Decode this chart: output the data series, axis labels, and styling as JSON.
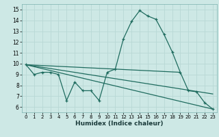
{
  "title": "",
  "xlabel": "Humidex (Indice chaleur)",
  "xlim": [
    -0.5,
    23.5
  ],
  "ylim": [
    5.5,
    15.5
  ],
  "xticks": [
    0,
    1,
    2,
    3,
    4,
    5,
    6,
    7,
    8,
    9,
    10,
    11,
    12,
    13,
    14,
    15,
    16,
    17,
    18,
    19,
    20,
    21,
    22,
    23
  ],
  "yticks": [
    6,
    7,
    8,
    9,
    10,
    11,
    12,
    13,
    14,
    15
  ],
  "background_color": "#cde8e5",
  "grid_color": "#b8d8d5",
  "line_color": "#1e6b5e",
  "curve1_x": [
    0,
    1,
    2,
    3,
    4,
    5,
    6,
    7,
    8,
    9,
    10,
    11,
    12,
    13,
    14,
    15,
    16,
    17,
    18,
    19,
    20,
    21,
    22,
    23
  ],
  "curve1_y": [
    9.9,
    9.0,
    9.2,
    9.2,
    9.0,
    6.6,
    8.3,
    7.5,
    7.5,
    6.6,
    9.2,
    9.5,
    12.3,
    13.9,
    14.9,
    14.4,
    14.1,
    12.7,
    11.1,
    9.2,
    7.5,
    7.4,
    6.4,
    5.8
  ],
  "curve2_x": [
    0,
    23
  ],
  "curve2_y": [
    9.9,
    5.8
  ],
  "curve3_x": [
    0,
    19
  ],
  "curve3_y": [
    9.9,
    9.2
  ],
  "curve4_x": [
    0,
    23
  ],
  "curve4_y": [
    9.9,
    7.2
  ]
}
